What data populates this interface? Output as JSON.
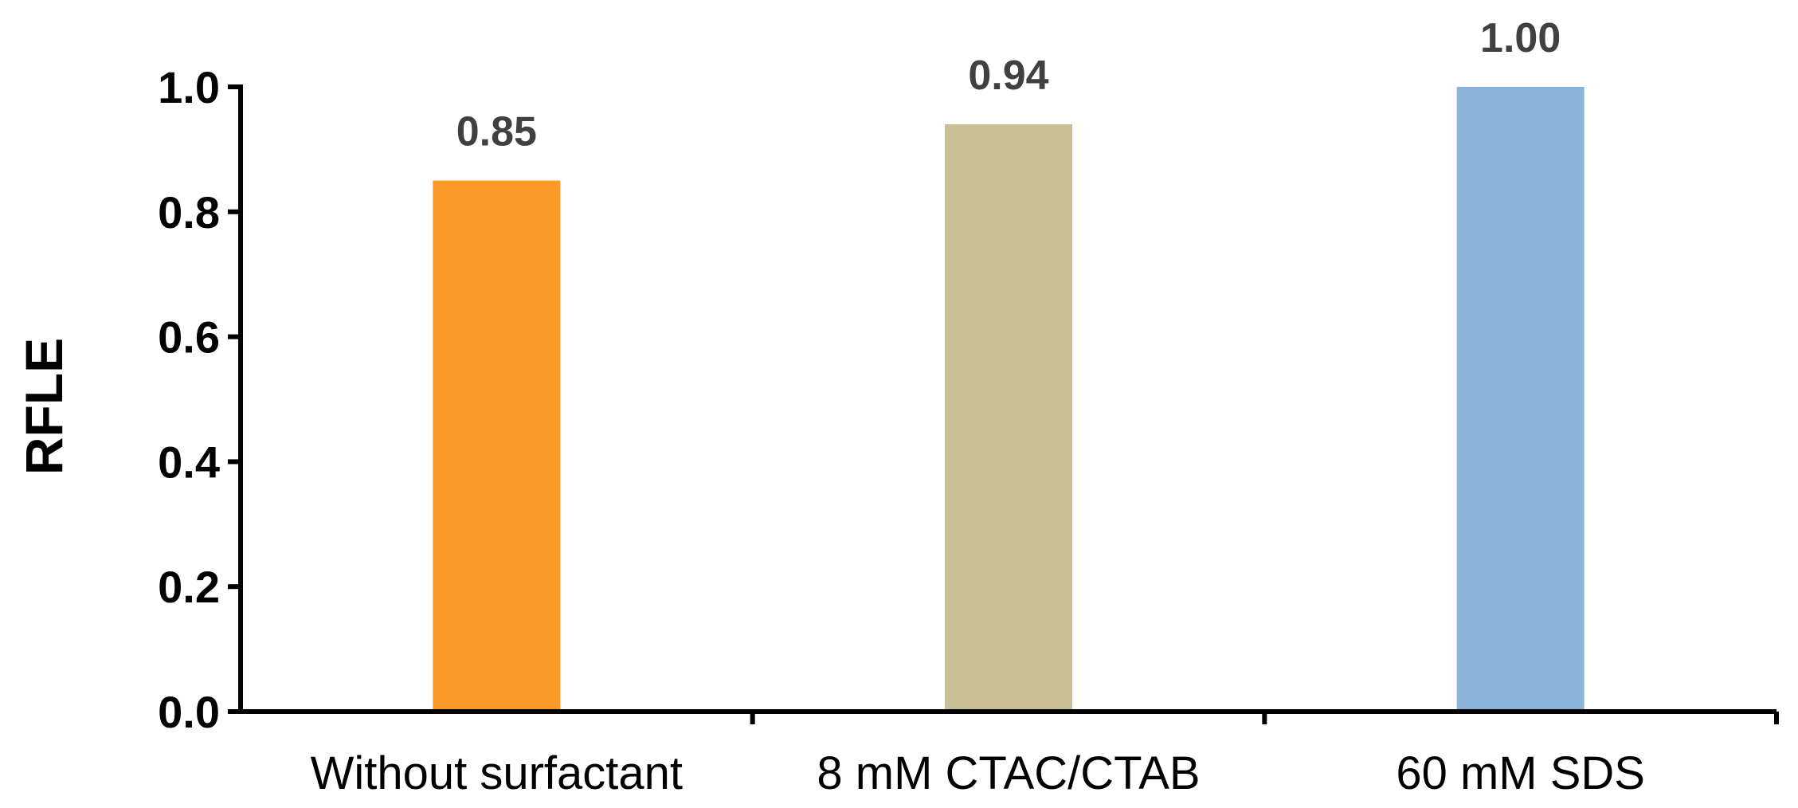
{
  "chart_data": {
    "type": "bar",
    "categories": [
      "Without surfactant",
      "8 mM CTAC/CTAB",
      "60 mM SDS"
    ],
    "values": [
      0.85,
      0.94,
      1.0
    ],
    "data_labels": [
      "0.85",
      "0.94",
      "1.00"
    ],
    "colors": [
      "#FB9A29",
      "#C9BF96",
      "#8AB4D9"
    ],
    "title": "",
    "xlabel": "",
    "ylabel": "RFLE",
    "ylim": [
      0,
      1.0
    ],
    "yticks": [
      "0.0",
      "0.2",
      "0.4",
      "0.6",
      "0.8",
      "1.0"
    ],
    "grid": false,
    "legend": "none"
  }
}
